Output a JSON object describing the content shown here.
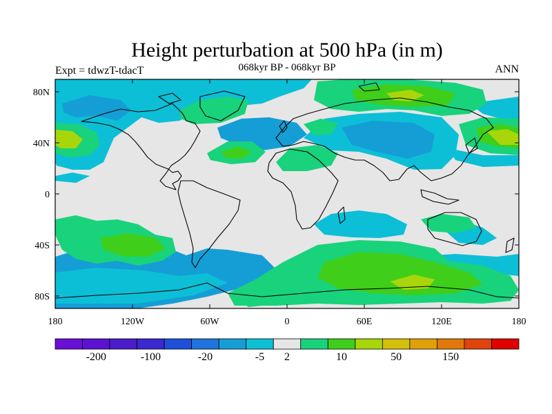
{
  "title": "Height perturbation at 500 hPa (in m)",
  "subtitle": "068kyr BP - 068kyr BP",
  "left_label": "Expt = tdwzT-tdacT",
  "right_label": "ANN",
  "y_ticks": [
    "80N",
    "40N",
    "0",
    "40S",
    "80S"
  ],
  "x_ticks": [
    "180",
    "120W",
    "60W",
    "0",
    "60E",
    "120E",
    "180"
  ],
  "colorbar": {
    "colors": [
      "#6a0fd8",
      "#5c12d2",
      "#4a1ccc",
      "#3a28d0",
      "#1f4fd8",
      "#1f73dc",
      "#159ed6",
      "#0cbfd6",
      "#e6e6e6",
      "#19d27c",
      "#3fce1a",
      "#a8d60a",
      "#d4c00a",
      "#e0a00a",
      "#e0780a",
      "#e0440a",
      "#e00000"
    ],
    "labels": [
      "-200",
      "-100",
      "-20",
      "-5",
      "2",
      "10",
      "50",
      "150"
    ]
  },
  "map_colors": {
    "neutral": "#e6e6e6",
    "neg_light": "#0cbfd6",
    "neg_mid": "#159ed6",
    "pos_light": "#19d27c",
    "pos_mid": "#3fce1a",
    "pos_strong": "#a8d60a"
  }
}
